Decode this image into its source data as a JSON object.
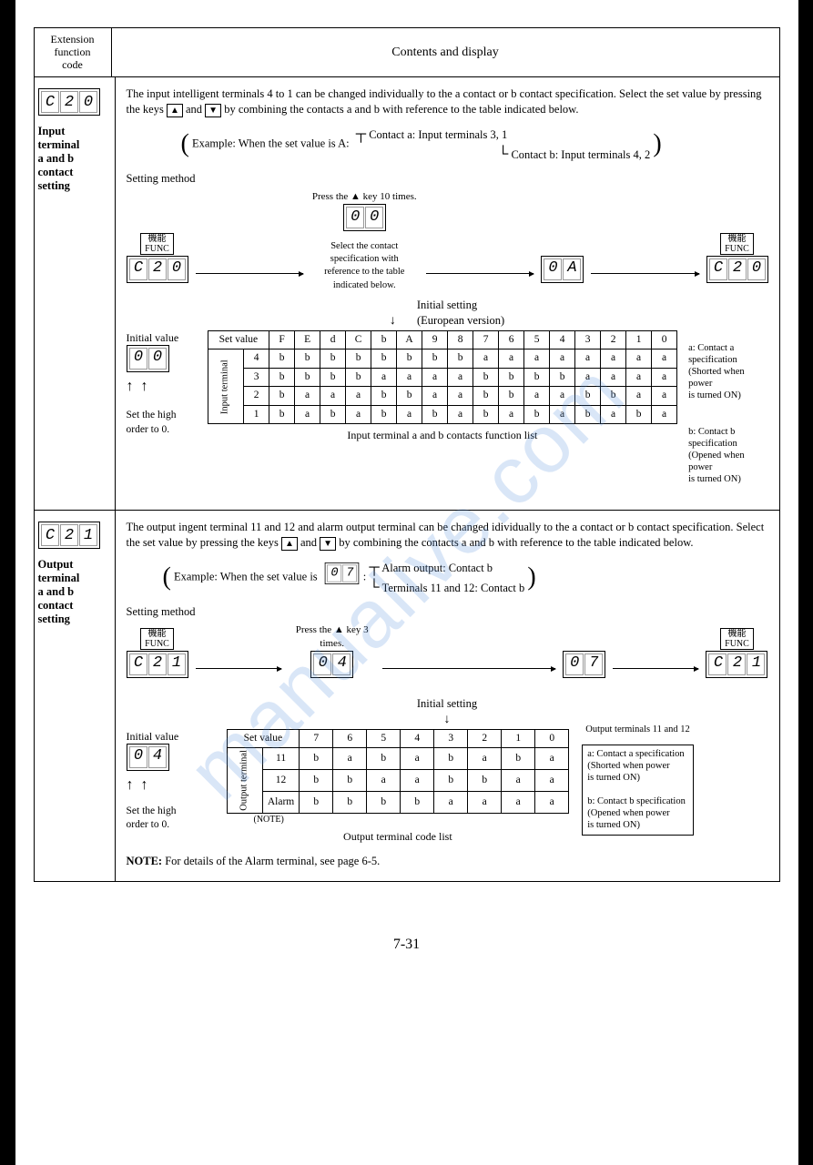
{
  "header": {
    "left1": "Extension",
    "left2": "function",
    "left3": "code",
    "right": "Contents and display"
  },
  "sec1": {
    "display": [
      "C",
      "2",
      "0"
    ],
    "title": "Input\nterminal\na and b\ncontact\nsetting",
    "intro1": "The input intelligent terminals 4 to 1 can be changed individually to the a contact or b contact specification.  Select the set value by pressing the keys",
    "intro2": "and",
    "intro3": "by combining the contacts a and b with reference to the table indicated below.",
    "example_pre": "Example:  When the set value is A:",
    "example_a": "Contact a: Input terminals 3, 1",
    "example_b": "Contact b: Input terminals 4, 2",
    "setting_method": "Setting method",
    "func_jp": "機能",
    "func_en": "FUNC",
    "flow1": [
      "C",
      "2",
      "0"
    ],
    "flow2": [
      "0",
      "0"
    ],
    "flow3": [
      "0",
      "A"
    ],
    "flow4": [
      "C",
      "2",
      "0"
    ],
    "press10": "Press the ▲ key 10 times.",
    "select_note": "Select the contact specification with\nreference to the table indicated below.",
    "initial_setting": "Initial setting",
    "euro": "(European version)",
    "initial_value": "Initial value",
    "initial_disp": [
      "0",
      "0"
    ],
    "set_high": "Set the high\norder to 0.",
    "table": {
      "setvalue_hdr": "Set value",
      "cols": [
        "F",
        "E",
        "d",
        "C",
        "b",
        "A",
        "9",
        "8",
        "7",
        "6",
        "5",
        "4",
        "3",
        "2",
        "1",
        "0"
      ],
      "rowlabel": "Input terminal",
      "rows": [
        {
          "n": "4",
          "v": [
            "b",
            "b",
            "b",
            "b",
            "b",
            "b",
            "b",
            "b",
            "a",
            "a",
            "a",
            "a",
            "a",
            "a",
            "a",
            "a"
          ]
        },
        {
          "n": "3",
          "v": [
            "b",
            "b",
            "b",
            "b",
            "a",
            "a",
            "a",
            "a",
            "b",
            "b",
            "b",
            "b",
            "a",
            "a",
            "a",
            "a"
          ]
        },
        {
          "n": "2",
          "v": [
            "b",
            "a",
            "a",
            "a",
            "b",
            "b",
            "a",
            "a",
            "b",
            "b",
            "a",
            "a",
            "b",
            "b",
            "a",
            "a"
          ]
        },
        {
          "n": "1",
          "v": [
            "b",
            "a",
            "b",
            "a",
            "b",
            "a",
            "b",
            "a",
            "b",
            "a",
            "b",
            "a",
            "b",
            "a",
            "b",
            "a"
          ]
        }
      ],
      "legend_a": "a: Contact a specification\n(Shorted when power\nis turned ON)",
      "legend_b": "b: Contact b specification\n(Opened when power\nis turned ON)",
      "caption": "Input terminal a and b contacts function list"
    }
  },
  "sec2": {
    "display": [
      "C",
      "2",
      "1"
    ],
    "title": "Output\nterminal\na and b\ncontact\nsetting",
    "intro1": "The output ingent terminal 11 and 12 and alarm output terminal can be changed idividually to the a contact or b contact specification.  Select the set value by pressing the keys",
    "intro2": "and",
    "intro3": "by combining the contacts a and b with reference to the table indicated below.",
    "example_pre": "Example:  When the set value is",
    "example_disp": [
      "0",
      "7"
    ],
    "example_a": "Alarm output: Contact b",
    "example_b": "Terminals 11 and 12: Contact b",
    "setting_method": "Setting method",
    "func_jp": "機能",
    "func_en": "FUNC",
    "flow1": [
      "C",
      "2",
      "1"
    ],
    "flow2": [
      "0",
      "4"
    ],
    "flow3": [
      "0",
      "7"
    ],
    "flow4": [
      "C",
      "2",
      "1"
    ],
    "press3": "Press the ▲ key 3 times.",
    "initial_setting": "Initial setting",
    "initial_value": "Initial value",
    "initial_disp": [
      "0",
      "4"
    ],
    "set_high": "Set the high\norder to 0.",
    "table": {
      "setvalue_hdr": "Set value",
      "cols": [
        "7",
        "6",
        "5",
        "4",
        "3",
        "2",
        "1",
        "0"
      ],
      "rowlabel": "Output\nterminal",
      "rows": [
        {
          "n": "11",
          "v": [
            "b",
            "a",
            "b",
            "a",
            "b",
            "a",
            "b",
            "a"
          ]
        },
        {
          "n": "12",
          "v": [
            "b",
            "b",
            "a",
            "a",
            "b",
            "b",
            "a",
            "a"
          ]
        },
        {
          "n": "Alarm",
          "v": [
            "b",
            "b",
            "b",
            "b",
            "a",
            "a",
            "a",
            "a"
          ]
        }
      ],
      "note_label": "(NOTE)",
      "caption": "Output terminal code list",
      "legend_title": "Output terminals 11 and 12",
      "legend_a": "a: Contact a specification\n(Shorted when power\nis turned ON)",
      "legend_b": "b: Contact b specification\n(Opened when power\nis turned ON)"
    },
    "note": "For details of the Alarm terminal, see page 6-5.",
    "note_pre": "NOTE:"
  },
  "pagenum": "7-31",
  "watermark": "manualive.com"
}
